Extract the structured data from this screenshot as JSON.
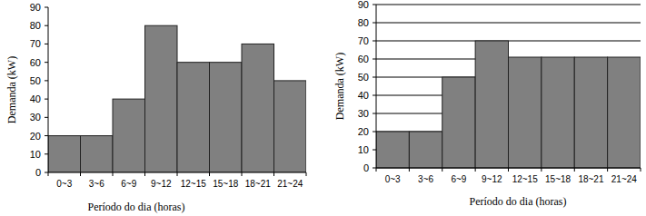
{
  "chart_data": [
    {
      "type": "bar",
      "categories": [
        "0~3",
        "3~6",
        "6~9",
        "9~12",
        "12~15",
        "15~18",
        "18~21",
        "21~24"
      ],
      "values": [
        20,
        20,
        40,
        80,
        60,
        60,
        70,
        50
      ],
      "color": "#808080",
      "xlabel": "Período do dia (horas)",
      "ylabel": "Demanda (kW)",
      "ylim": [
        0,
        90
      ],
      "yticks": [
        0,
        10,
        20,
        30,
        40,
        50,
        60,
        70,
        80,
        90
      ],
      "grid": false
    },
    {
      "type": "bar",
      "categories": [
        "0~3",
        "3~6",
        "6~9",
        "9~12",
        "12~15",
        "15~18",
        "18~21",
        "21~24"
      ],
      "values": [
        20,
        20,
        50,
        70,
        61,
        61,
        61,
        61
      ],
      "color": "#808080",
      "xlabel": "Período do dia (horas)",
      "ylabel": "Demanda (kW)",
      "ylim": [
        0,
        90
      ],
      "yticks": [
        0,
        10,
        20,
        30,
        40,
        50,
        60,
        70,
        80,
        90
      ],
      "grid": true
    }
  ]
}
